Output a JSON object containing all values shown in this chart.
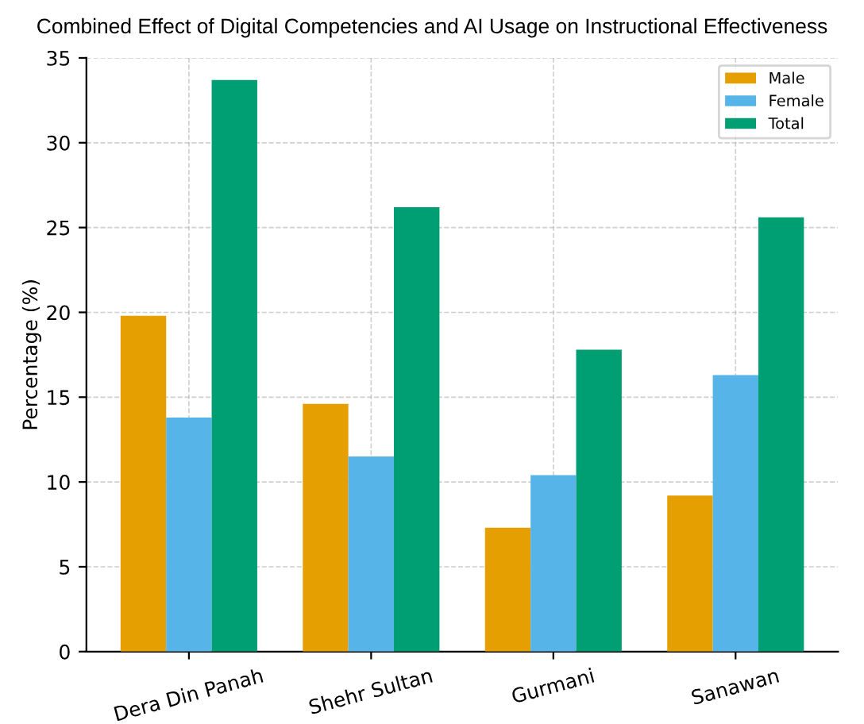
{
  "chart_data": {
    "type": "bar",
    "title": "Combined Effect of Digital Competencies and AI Usage on Instructional Effectiveness",
    "ylabel": "Percentage (%)",
    "categories": [
      "Dera Din Panah",
      "Shehr Sultan",
      "Gurmani",
      "Sanawan"
    ],
    "series": [
      {
        "name": "Male",
        "color": "#e69f00",
        "values": [
          19.8,
          14.6,
          7.3,
          9.2
        ]
      },
      {
        "name": "Female",
        "color": "#56b4e9",
        "values": [
          13.8,
          11.5,
          10.4,
          16.3
        ]
      },
      {
        "name": "Total",
        "color": "#009e73",
        "values": [
          33.7,
          26.2,
          17.8,
          25.6
        ]
      }
    ],
    "ylim": [
      0,
      35
    ],
    "yticks": [
      0,
      5,
      10,
      15,
      20,
      25,
      30,
      35
    ],
    "grid": true,
    "legend": "top right"
  }
}
